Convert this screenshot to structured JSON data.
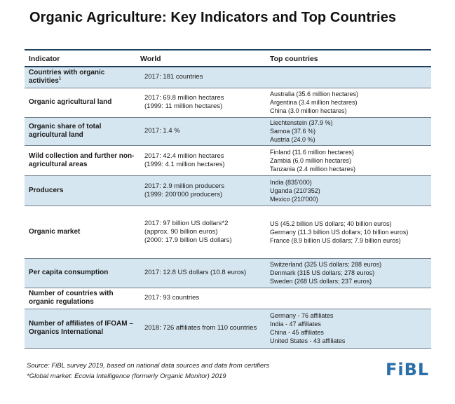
{
  "title": "Organic Agriculture: Key Indicators and Top Countries",
  "table": {
    "headers": {
      "indicator": "Indicator",
      "world": "World",
      "top": "Top countries"
    },
    "rows": [
      {
        "indicator": "Countries with organic activities",
        "indicator_sup": "1",
        "world": [
          "2017: 181 countries"
        ],
        "top": []
      },
      {
        "indicator": "Organic agricultural land",
        "world": [
          "2017: 69.8 million hectares",
          "(1999: 11 million hectares)"
        ],
        "top": [
          "Australia (35.6 million hectares)",
          "Argentina (3.4 million hectares)",
          "China (3.0 million hectares)"
        ]
      },
      {
        "indicator": "Organic share of total agricultural land",
        "world": [
          "2017: 1.4 %"
        ],
        "top": [
          "Liechtenstein (37.9 %)",
          "Samoa (37.6 %)",
          "Austria (24.0 %)"
        ]
      },
      {
        "indicator": "Wild collection and further non-agricultural areas",
        "world": [
          "2017: 42.4 million hectares",
          "(1999: 4.1 million hectares)"
        ],
        "top": [
          "Finland (11.6 million hectares)",
          "Zambia (6.0 million hectares)",
          "Tanzania (2.4 million hectares)"
        ]
      },
      {
        "indicator": "Producers",
        "world": [
          "2017: 2.9 million producers",
          "(1999: 200'000 producers)"
        ],
        "top": [
          "India (835'000)",
          "Uganda (210'352)",
          "Mexico (210'000)"
        ]
      },
      {
        "indicator": "Organic market",
        "world": [
          "2017: 97 billion US dollars*2",
          "(approx. 90 billion euros)",
          "(2000: 17.9 billion US dollars)"
        ],
        "top": [
          "US (45.2 billion US dollars; 40 billion euros)",
          "Germany (11.3 billion US dollars; 10 billion euros)",
          "France (8.9 billion US dollars; 7.9 billion euros)"
        ]
      },
      {
        "indicator": "Per capita consumption",
        "world": [
          "2017: 12.8 US dollars (10.8 euros)"
        ],
        "top": [
          "Switzerland (325 US dollars; 288 euros)",
          "Denmark (315 US dollars; 278 euros)",
          "Sweden (268 US dollars; 237 euros)"
        ]
      },
      {
        "indicator": "Number of countries with organic regulations",
        "world": [
          "2017: 93 countries"
        ],
        "top": []
      },
      {
        "indicator": "Number of affiliates of IFOAM – Organics International",
        "world": [
          "2018: 726 affiliates from 110 countries"
        ],
        "top": [
          "Germany - 76 affiliates",
          "India - 47 affiliates",
          "China - 45 affiliates",
          "United States - 43 affiliates"
        ]
      }
    ]
  },
  "footer": {
    "source": "Source: FiBL survey 2019, based on national data sources and data from certifiers",
    "note": "*Global market: Ecovia Intelligence (formerly Organic Monitor) 2019"
  },
  "logo": "FiBL"
}
